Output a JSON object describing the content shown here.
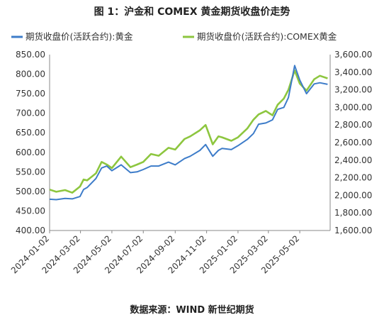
{
  "header": {
    "title": "图 1：沪金和 COMEX 黄金期货收盘价走势"
  },
  "footer": {
    "source": "数据来源：WIND  新世纪期货"
  },
  "chart_data": {
    "type": "line",
    "title": "图 1：沪金和 COMEX 黄金期货收盘价走势",
    "legend_placement": "top",
    "grid": false,
    "x_tick_labels": [
      "2024-01-02",
      "2024-03-02",
      "2024-05-02",
      "2024-07-02",
      "2024-09-02",
      "2024-11-02",
      "2025-01-02",
      "2025-03-02",
      "2025-05-02"
    ],
    "y_left": {
      "ylim": [
        400,
        850
      ],
      "ticks": [
        "400.00",
        "450.00",
        "500.00",
        "550.00",
        "600.00",
        "650.00",
        "700.00",
        "750.00",
        "800.00",
        "850.00"
      ]
    },
    "y_right": {
      "ylim": [
        1600,
        3600
      ],
      "ticks": [
        "1,600.00",
        "1,800.00",
        "2,000.00",
        "2,200.00",
        "2,400.00",
        "2,600.00",
        "2,800.00",
        "3,000.00",
        "3,200.00",
        "3,400.00",
        "3,600.00"
      ]
    },
    "series": [
      {
        "name": "期货收盘价(活跃合约):黄金",
        "axis": "left",
        "color": "#3d7cc9",
        "x": [
          "2024-01-02",
          "2024-01-15",
          "2024-02-01",
          "2024-02-15",
          "2024-03-01",
          "2024-03-08",
          "2024-03-15",
          "2024-04-01",
          "2024-04-12",
          "2024-04-22",
          "2024-05-02",
          "2024-05-20",
          "2024-06-07",
          "2024-06-20",
          "2024-07-02",
          "2024-07-17",
          "2024-08-01",
          "2024-08-20",
          "2024-09-02",
          "2024-09-20",
          "2024-10-01",
          "2024-10-20",
          "2024-10-31",
          "2024-11-14",
          "2024-11-25",
          "2024-12-02",
          "2024-12-20",
          "2025-01-02",
          "2025-01-20",
          "2025-02-01",
          "2025-02-11",
          "2025-02-25",
          "2025-03-10",
          "2025-03-20",
          "2025-04-01",
          "2025-04-10",
          "2025-04-22",
          "2025-05-02",
          "2025-05-15",
          "2025-05-30",
          "2025-06-10",
          "2025-06-25"
        ],
        "values": [
          480,
          479,
          482,
          481,
          487,
          505,
          510,
          533,
          560,
          565,
          553,
          568,
          548,
          550,
          556,
          565,
          565,
          575,
          568,
          584,
          590,
          605,
          620,
          590,
          605,
          610,
          607,
          617,
          633,
          648,
          672,
          675,
          683,
          710,
          715,
          740,
          822,
          785,
          750,
          775,
          778,
          774
        ]
      },
      {
        "name": "期货收盘价(活跃合约):COMEX黄金",
        "axis": "right",
        "color": "#8dc63f",
        "x": [
          "2024-01-02",
          "2024-01-15",
          "2024-02-01",
          "2024-02-15",
          "2024-03-01",
          "2024-03-08",
          "2024-03-15",
          "2024-04-01",
          "2024-04-12",
          "2024-04-22",
          "2024-05-02",
          "2024-05-20",
          "2024-06-07",
          "2024-06-20",
          "2024-07-02",
          "2024-07-17",
          "2024-08-01",
          "2024-08-20",
          "2024-09-02",
          "2024-09-20",
          "2024-10-01",
          "2024-10-20",
          "2024-10-31",
          "2024-11-14",
          "2024-11-25",
          "2024-12-02",
          "2024-12-20",
          "2025-01-02",
          "2025-01-20",
          "2025-02-01",
          "2025-02-11",
          "2025-02-25",
          "2025-03-10",
          "2025-03-20",
          "2025-04-01",
          "2025-04-10",
          "2025-04-22",
          "2025-05-02",
          "2025-05-15",
          "2025-05-30",
          "2025-06-10",
          "2025-06-25"
        ],
        "values": [
          2065,
          2040,
          2060,
          2030,
          2100,
          2180,
          2170,
          2250,
          2380,
          2350,
          2310,
          2440,
          2320,
          2350,
          2380,
          2470,
          2450,
          2540,
          2520,
          2640,
          2670,
          2740,
          2800,
          2580,
          2670,
          2660,
          2620,
          2660,
          2760,
          2860,
          2920,
          2960,
          2910,
          3030,
          3100,
          3200,
          3420,
          3270,
          3190,
          3320,
          3360,
          3330
        ]
      }
    ]
  }
}
